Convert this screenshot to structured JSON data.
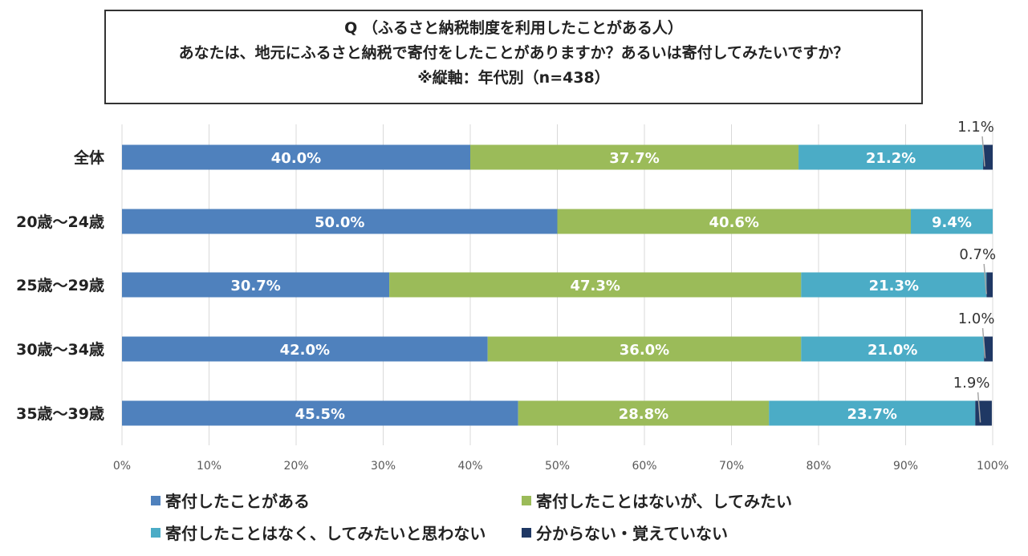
{
  "title": {
    "line1": "Q （ふるさと納税制度を利用したことがある人）",
    "line2": "あなたは、地元にふるさと納税で寄付をしたことがありますか？あるいは寄付してみたいですか？",
    "line3": "※縦軸：年代別（n=438）"
  },
  "chart_data": {
    "type": "bar",
    "orientation": "horizontal",
    "stacked": true,
    "percent_stacked": true,
    "categories": [
      "全体",
      "20歳～24歳",
      "25歳～29歳",
      "30歳～34歳",
      "35歳～39歳"
    ],
    "series": [
      {
        "name": "寄付したことがある",
        "color": "#4f81bd",
        "values": [
          40.0,
          50.0,
          30.7,
          42.0,
          45.5
        ],
        "labels": [
          "40.0%",
          "50.0%",
          "30.7%",
          "42.0%",
          "45.5%"
        ]
      },
      {
        "name": "寄付したことはないが、してみたい",
        "color": "#9bbb59",
        "values": [
          37.7,
          40.6,
          47.3,
          36.0,
          28.8
        ],
        "labels": [
          "37.7%",
          "40.6%",
          "47.3%",
          "36.0%",
          "28.8%"
        ]
      },
      {
        "name": "寄付したことはなく、してみたいと思わない",
        "color": "#4bacc6",
        "values": [
          21.2,
          9.4,
          21.3,
          21.0,
          23.7
        ],
        "labels": [
          "21.2%",
          "9.4%",
          "21.3%",
          "21.0%",
          "23.7%"
        ]
      },
      {
        "name": "分からない・覚えていない",
        "color": "#1f3864",
        "values": [
          1.1,
          0.0,
          0.7,
          1.0,
          1.9
        ],
        "labels": [
          "1.1%",
          "",
          "0.7%",
          "1.0%",
          "1.9%"
        ]
      }
    ],
    "xlim": [
      0,
      100
    ],
    "xticks": [
      "0%",
      "10%",
      "20%",
      "30%",
      "40%",
      "50%",
      "60%",
      "70%",
      "80%",
      "90%",
      "100%"
    ],
    "grid": true,
    "legend_position": "bottom"
  }
}
